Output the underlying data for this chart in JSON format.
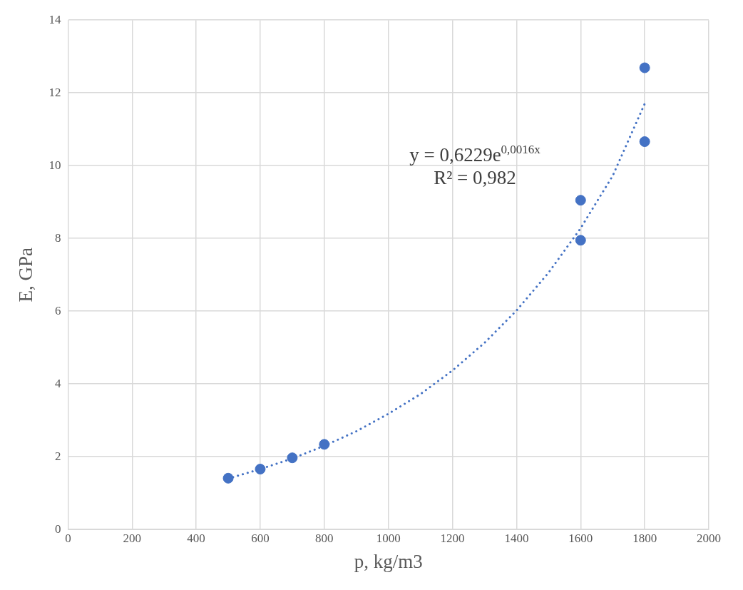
{
  "chart_data": {
    "type": "scatter",
    "xlabel": "p, kg/m3",
    "ylabel": "E, GPa",
    "xlim": [
      0,
      2000
    ],
    "xticks": [
      0,
      200,
      400,
      600,
      800,
      1000,
      1200,
      1400,
      1600,
      1800,
      2000
    ],
    "ylim": [
      0,
      14
    ],
    "yticks": [
      0,
      2,
      4,
      6,
      8,
      10,
      12,
      14
    ],
    "grid": true,
    "legend": false,
    "marker": "circle",
    "series": [
      {
        "color": "#4472c4",
        "x": [
          500,
          600,
          700,
          800,
          1600,
          1600,
          1800,
          1800
        ],
        "values": [
          1.41,
          1.66,
          1.97,
          2.34,
          9.05,
          7.95,
          12.69,
          10.66
        ]
      },
      {
        "type": "line",
        "color": "#4472c4",
        "marker": "none",
        "line_style": "dotted",
        "x": [
          500,
          600,
          700,
          800,
          900,
          1000,
          1100,
          1200,
          1300,
          1400,
          1500,
          1600,
          1700,
          1800
        ],
        "values": [
          1.4,
          1.66,
          1.95,
          2.3,
          2.7,
          3.18,
          3.72,
          4.37,
          5.13,
          6.02,
          7.06,
          8.28,
          9.72,
          11.7
        ]
      }
    ],
    "annotations": [
      "y = 0,6229e$^{0,0016x}$",
      "R² = 0,982"
    ]
  }
}
